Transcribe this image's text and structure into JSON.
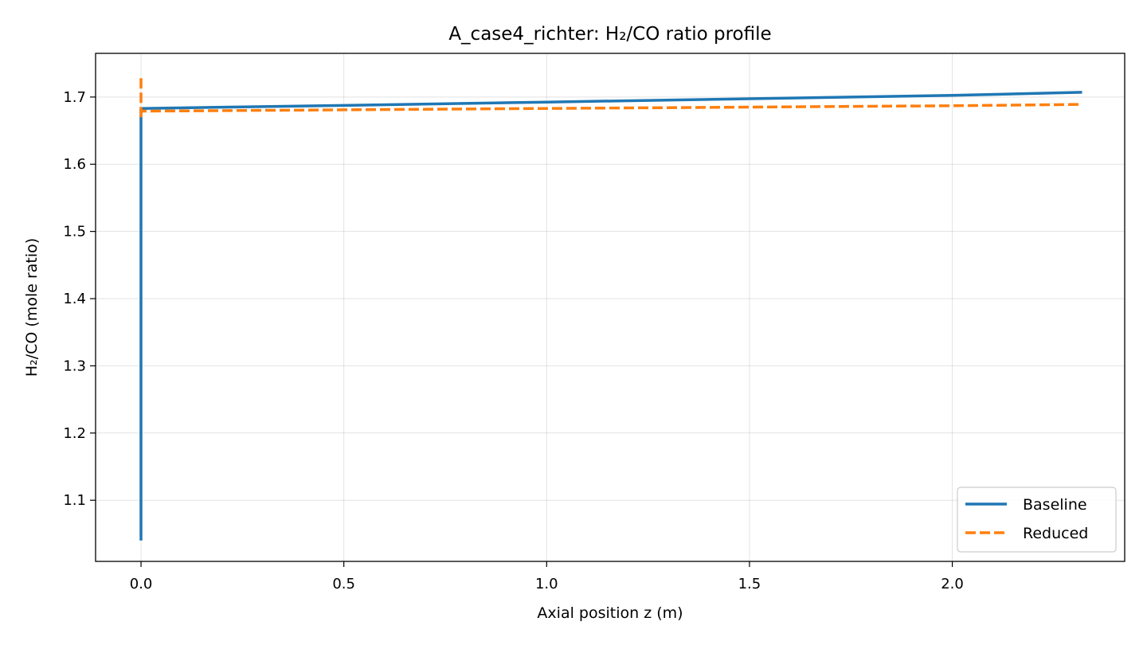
{
  "chart_data": {
    "type": "line",
    "title": "A_case4_richter: H₂/CO ratio profile",
    "xlabel": "Axial position z (m)",
    "ylabel": "H₂/CO (mole ratio)",
    "xlim": [
      -0.112,
      2.425
    ],
    "ylim": [
      1.009,
      1.765
    ],
    "xticks": [
      0.0,
      0.5,
      1.0,
      1.5,
      2.0
    ],
    "xtick_labels": [
      "0.0",
      "0.5",
      "1.0",
      "1.5",
      "2.0"
    ],
    "yticks": [
      1.1,
      1.2,
      1.3,
      1.4,
      1.5,
      1.6,
      1.7
    ],
    "ytick_labels": [
      "1.1",
      "1.2",
      "1.3",
      "1.4",
      "1.5",
      "1.6",
      "1.7"
    ],
    "grid": true,
    "legend_position": "lower-right",
    "series": [
      {
        "name": "Baseline",
        "color": "#1f77b4",
        "style": "solid",
        "x": [
          0.0,
          0.0,
          0.0,
          0.5,
          1.0,
          1.5,
          2.0,
          2.32
        ],
        "y": [
          1.04,
          1.62,
          1.683,
          1.6875,
          1.6925,
          1.6975,
          1.7025,
          1.707
        ]
      },
      {
        "name": "Reduced",
        "color": "#ff7f0e",
        "style": "dashed",
        "x": [
          0.0,
          0.0,
          0.0,
          0.5,
          1.0,
          1.5,
          2.0,
          2.32
        ],
        "y": [
          1.728,
          1.668,
          1.679,
          1.681,
          1.683,
          1.685,
          1.687,
          1.689
        ]
      }
    ]
  }
}
